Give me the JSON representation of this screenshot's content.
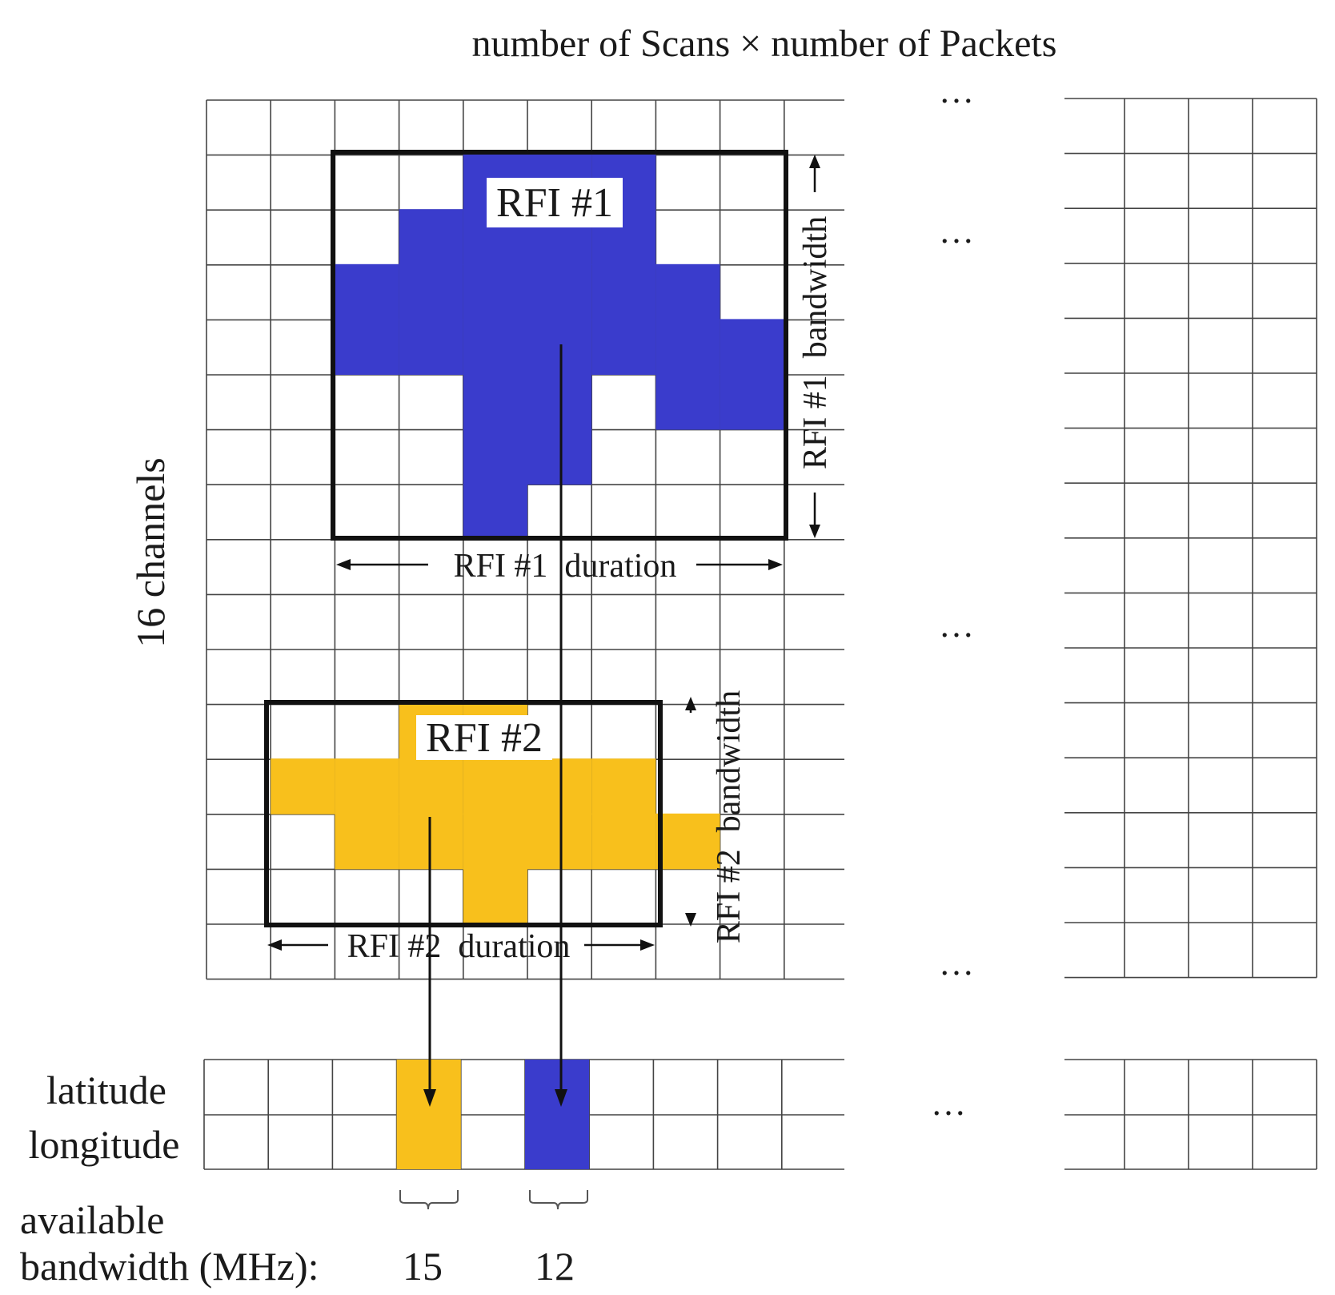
{
  "title": "number of Scans × number of Packets",
  "y_axis_label": "16 channels",
  "ellipsis": "…",
  "rfi1": {
    "label": "RFI #1",
    "duration_label": "RFI #1  duration",
    "bandwidth_label": "RFI #1  bandwidth",
    "color": "#3a3ccc"
  },
  "rfi2": {
    "label": "RFI #2",
    "duration_label": "RFI #2  duration",
    "bandwidth_label": "RFI #2  bandwidth",
    "color": "#f8c01c"
  },
  "geo_rows": [
    "latitude",
    "longitude"
  ],
  "available_bandwidth": {
    "label_line1": "available",
    "label_line2": "bandwidth (MHz):",
    "values": [
      "15",
      "12"
    ]
  }
}
